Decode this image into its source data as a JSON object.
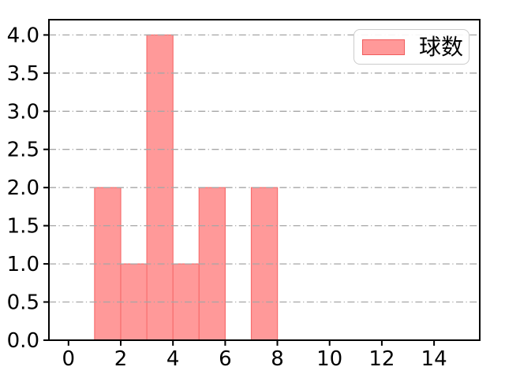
{
  "figure": {
    "background": "#ffffff"
  },
  "chart_data": {
    "type": "bar",
    "subtype": "histogram",
    "title": "",
    "xlabel": "",
    "ylabel": "",
    "legend": {
      "label": "球数",
      "position": "upper right"
    },
    "bin_edges": [
      1,
      2,
      3,
      4,
      5,
      6,
      7,
      8
    ],
    "categories": [
      "1-2",
      "2-3",
      "3-4",
      "4-5",
      "5-6",
      "6-7",
      "7-8"
    ],
    "values": [
      2,
      1,
      4,
      1,
      2,
      0,
      2
    ],
    "xlim": [
      -0.75,
      15.75
    ],
    "ylim": [
      0,
      4.2
    ],
    "xticks": [
      0,
      2,
      4,
      6,
      8,
      10,
      12,
      14
    ],
    "xtick_labels": [
      "0",
      "2",
      "4",
      "6",
      "8",
      "10",
      "12",
      "14"
    ],
    "yticks": [
      0.5,
      1.0,
      1.5,
      2.0,
      2.5,
      3.0,
      3.5,
      4.0
    ],
    "ytick_labels": [
      "0.0",
      "0.5",
      "1.0",
      "1.5",
      "2.0",
      "2.5",
      "3.0",
      "3.5",
      "4.0"
    ],
    "ytick_values": [
      0,
      0.5,
      1.0,
      1.5,
      2.0,
      2.5,
      3.0,
      3.5,
      4.0
    ],
    "grid": {
      "axis": "y",
      "style": "dash-dot",
      "color": "#a6a6a6"
    },
    "colors": {
      "bar_fill": "#ff9999",
      "bar_edge": "#f76e6e",
      "swatch_edge": "#f05c5c",
      "axis": "#000000",
      "tick_label": "#000000",
      "legend_border": "#cccccc",
      "legend_bg": "#ffffff"
    }
  }
}
